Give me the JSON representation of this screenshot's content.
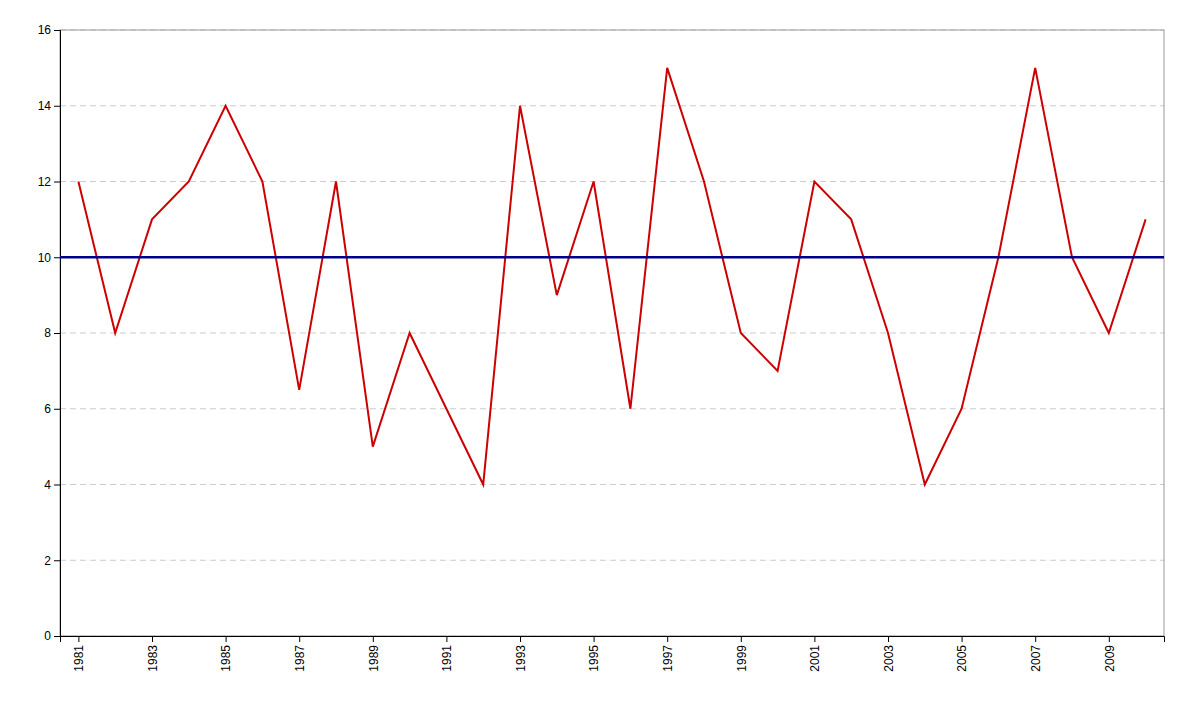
{
  "chart_data": {
    "type": "line",
    "x": [
      1981,
      1982,
      1983,
      1984,
      1985,
      1986,
      1987,
      1988,
      1989,
      1990,
      1991,
      1992,
      1993,
      1994,
      1995,
      1996,
      1997,
      1998,
      1999,
      2000,
      2001,
      2002,
      2003,
      2004,
      2005,
      2006,
      2007,
      2008,
      2009,
      2010
    ],
    "series": [
      {
        "color": "#cc0000",
        "values": [
          12,
          8,
          11,
          12,
          14,
          12,
          6.5,
          12,
          5,
          8,
          6,
          4,
          14,
          9,
          12,
          6,
          15,
          12,
          8,
          7,
          12,
          11,
          8,
          4,
          6,
          10,
          15,
          10,
          8,
          11
        ]
      }
    ],
    "reference_lines": [
      {
        "value": 10,
        "color": "#00008b"
      }
    ],
    "xlim": [
      1980.5,
      2010.5
    ],
    "xticks": [
      1981,
      1983,
      1985,
      1987,
      1989,
      1991,
      1993,
      1995,
      1997,
      1999,
      2001,
      2003,
      2005,
      2007,
      2009
    ],
    "ylim": [
      0,
      16
    ],
    "yticks": [
      0,
      2,
      4,
      6,
      8,
      10,
      12,
      14,
      16
    ],
    "grid": true
  }
}
